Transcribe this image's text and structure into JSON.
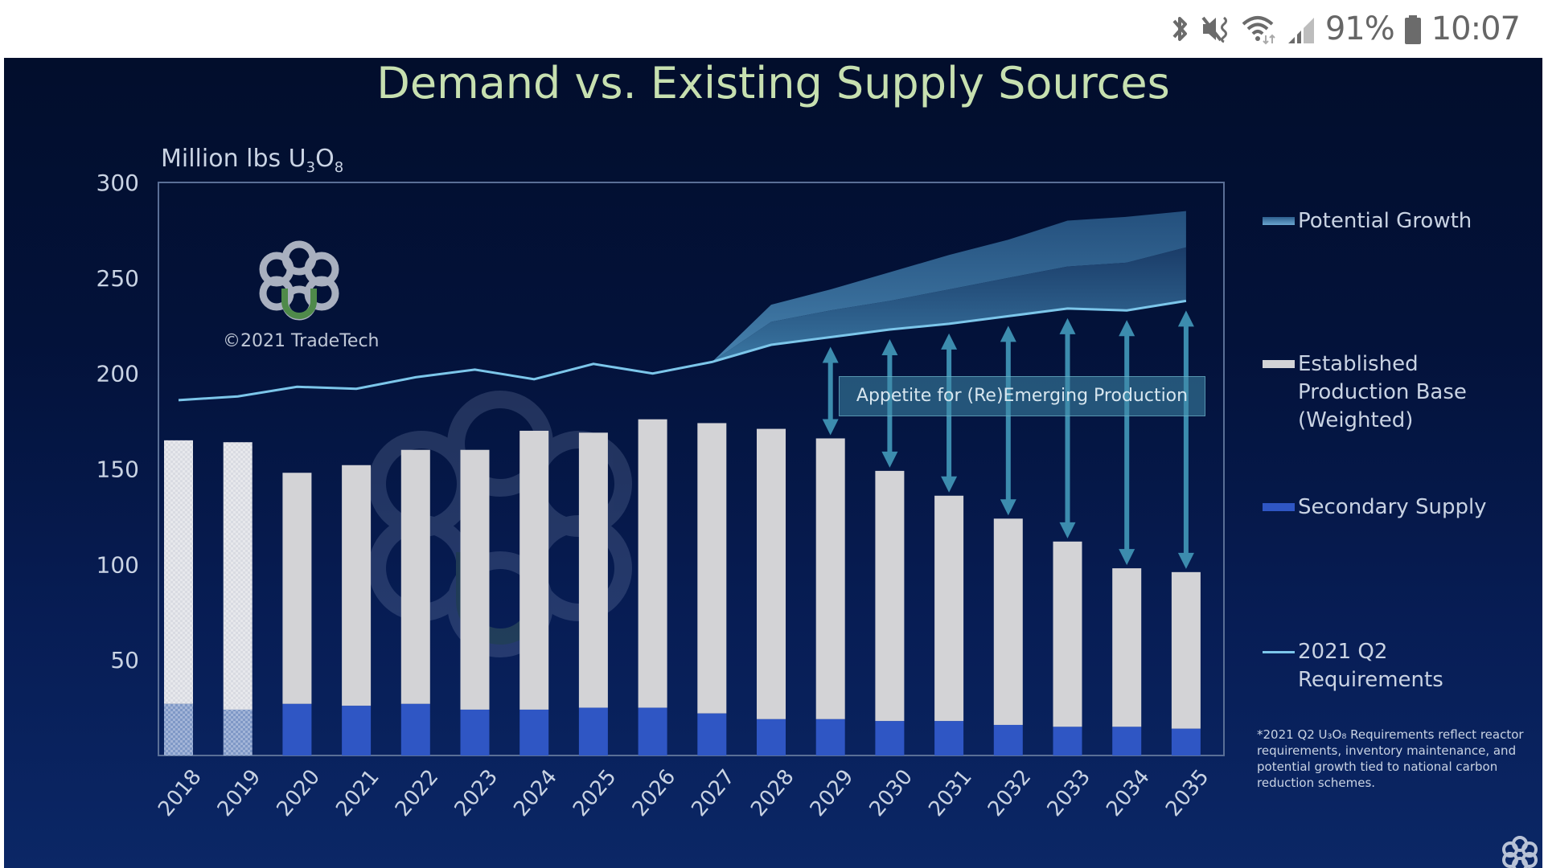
{
  "status_bar": {
    "icons": [
      "bluetooth-icon",
      "mute-icon",
      "wifi-icon",
      "signal-icon",
      "battery-icon"
    ],
    "battery": "91%",
    "time": "10:07",
    "icon_color": "#6b6b6b"
  },
  "slide": {
    "title": "Demand vs. Existing Supply Sources",
    "unit_label": "Million lbs U",
    "unit_sub1": "3",
    "unit_mid": "O",
    "unit_sub2": "8",
    "watermark_caption": "©2021 TradeTech",
    "annotation": "Appetite for (Re)Emerging Production",
    "footnote": "*2021 Q2 U₃O₈ Requirements reflect reactor requirements, inventory maintenance, and potential growth tied to national carbon reduction schemes.",
    "legend": [
      {
        "label": "Potential Growth",
        "type": "gradient-area",
        "color": "#4f8fb8"
      },
      {
        "label": "Established\nProduction Base\n(Weighted)",
        "type": "bar",
        "color": "#d3d3d6"
      },
      {
        "label": "Secondary Supply",
        "type": "bar",
        "color": "#2f56c4"
      },
      {
        "label": "2021 Q2\nRequirements",
        "type": "line",
        "color": "#7cc6ea"
      }
    ]
  },
  "chart_data": {
    "type": "bar",
    "title": "Demand vs. Existing Supply Sources",
    "xlabel": "",
    "ylabel": "Million lbs U3O8",
    "ylim": [
      0,
      300
    ],
    "yticks": [
      50,
      100,
      150,
      200,
      250,
      300
    ],
    "grid": false,
    "legend_position": "right",
    "categories": [
      "2018",
      "2019",
      "2020",
      "2021",
      "2022",
      "2023",
      "2024",
      "2025",
      "2026",
      "2027",
      "2028",
      "2029",
      "2030",
      "2031",
      "2032",
      "2033",
      "2034",
      "2035"
    ],
    "series": [
      {
        "name": "Secondary Supply",
        "kind": "stacked-bar",
        "color": "#2f56c4",
        "values": [
          27,
          24,
          27,
          26,
          27,
          24,
          24,
          25,
          25,
          22,
          19,
          19,
          18,
          18,
          16,
          15,
          15,
          14
        ]
      },
      {
        "name": "Established Production Base (Weighted)",
        "kind": "stacked-bar-total",
        "color": "#d3d3d6",
        "values": [
          165,
          164,
          148,
          152,
          160,
          160,
          170,
          169,
          176,
          174,
          171,
          166,
          149,
          136,
          124,
          112,
          98,
          96
        ]
      },
      {
        "name": "2021 Q2 Requirements",
        "kind": "line",
        "color": "#7cc6ea",
        "values": [
          186,
          188,
          193,
          192,
          198,
          202,
          197,
          205,
          200,
          206,
          215,
          219,
          223,
          226,
          230,
          234,
          233,
          238
        ]
      },
      {
        "name": "Potential Growth (mid)",
        "kind": "area-upper",
        "color": "#3d7fae",
        "values": [
          null,
          null,
          null,
          null,
          null,
          null,
          null,
          null,
          null,
          206,
          227,
          233,
          238,
          244,
          250,
          256,
          258,
          266
        ]
      },
      {
        "name": "Potential Growth (high)",
        "kind": "area-upper",
        "color": "#2e5f8e",
        "values": [
          null,
          null,
          null,
          null,
          null,
          null,
          null,
          null,
          null,
          206,
          236,
          244,
          253,
          262,
          270,
          280,
          282,
          285
        ]
      }
    ],
    "hatched_years": [
      "2018",
      "2019"
    ],
    "annotation_arrows_years": [
      "2029",
      "2030",
      "2031",
      "2032",
      "2033",
      "2034",
      "2035"
    ]
  }
}
